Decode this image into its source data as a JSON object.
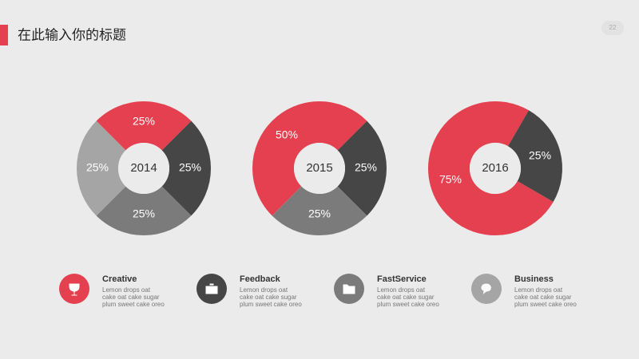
{
  "header": {
    "title": "在此输入你的标题",
    "page": "22"
  },
  "chart_data": [
    {
      "type": "donut",
      "title": "2014",
      "values": [
        25,
        25,
        25,
        25
      ],
      "value_labels": [
        "25%",
        "25%",
        "25%",
        "25%"
      ],
      "colors": [
        "#e5404f",
        "#464646",
        "#7b7b7b",
        "#a5a5a5"
      ]
    },
    {
      "type": "donut",
      "title": "2015",
      "values": [
        50,
        25,
        25
      ],
      "value_labels": [
        "50%",
        "25%",
        "25%"
      ],
      "colors": [
        "#e5404f",
        "#464646",
        "#7b7b7b"
      ]
    },
    {
      "type": "donut",
      "title": "2016",
      "values": [
        75,
        25
      ],
      "value_labels": [
        "75%",
        "25%"
      ],
      "colors": [
        "#e5404f",
        "#464646"
      ]
    }
  ],
  "features": [
    {
      "title": "Creative",
      "lines": [
        "Lemon drops oat",
        "cake oat cake sugar",
        "plum sweet cake oreo"
      ]
    },
    {
      "title": "Feedback",
      "lines": [
        "Lemon drops oat",
        "cake oat cake sugar",
        "plum sweet cake oreo"
      ]
    },
    {
      "title": "FastService",
      "lines": [
        "Lemon drops oat",
        "cake oat cake sugar",
        "plum sweet cake oreo"
      ]
    },
    {
      "title": "Business",
      "lines": [
        "Lemon drops oat",
        "cake oat cake sugar",
        "plum sweet cake oreo"
      ]
    }
  ]
}
